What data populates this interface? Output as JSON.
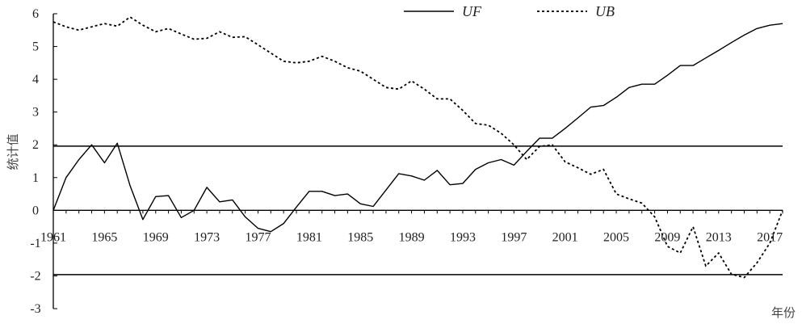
{
  "chart_data": {
    "type": "line",
    "title": "",
    "xlabel": "年份",
    "ylabel": "统计值",
    "xlim": [
      1961,
      2018
    ],
    "ylim": [
      -3,
      6
    ],
    "yticks": [
      -3,
      -2,
      -1,
      0,
      1,
      2,
      3,
      4,
      5,
      6
    ],
    "xticks": [
      1961,
      1965,
      1969,
      1973,
      1977,
      1981,
      1985,
      1989,
      1993,
      1997,
      2001,
      2005,
      2009,
      2013,
      2017
    ],
    "reference_lines": [
      1.96,
      -1.96
    ],
    "legend_position": "top",
    "grid": false,
    "x": [
      1961,
      1962,
      1963,
      1964,
      1965,
      1966,
      1967,
      1968,
      1969,
      1970,
      1971,
      1972,
      1973,
      1974,
      1975,
      1976,
      1977,
      1978,
      1979,
      1980,
      1981,
      1982,
      1983,
      1984,
      1985,
      1986,
      1987,
      1988,
      1989,
      1990,
      1991,
      1992,
      1993,
      1994,
      1995,
      1996,
      1997,
      1998,
      1999,
      2000,
      2001,
      2002,
      2003,
      2004,
      2005,
      2006,
      2007,
      2008,
      2009,
      2010,
      2011,
      2012,
      2013,
      2014,
      2015,
      2016,
      2017,
      2018
    ],
    "series": [
      {
        "name": "UF",
        "style": "solid",
        "values": [
          0,
          1.0,
          1.55,
          2.0,
          1.45,
          2.05,
          0.75,
          -0.28,
          0.42,
          0.45,
          -0.22,
          0.0,
          0.7,
          0.26,
          0.32,
          -0.2,
          -0.55,
          -0.65,
          -0.4,
          0.1,
          0.58,
          0.58,
          0.45,
          0.5,
          0.2,
          0.12,
          0.62,
          1.12,
          1.05,
          0.92,
          1.22,
          0.78,
          0.82,
          1.25,
          1.45,
          1.55,
          1.38,
          1.8,
          2.2,
          2.2,
          2.5,
          2.82,
          3.15,
          3.2,
          3.45,
          3.75,
          3.85,
          3.85,
          4.12,
          4.42,
          4.42,
          4.65,
          4.88,
          5.12,
          5.35,
          5.55,
          5.65,
          5.7
        ]
      },
      {
        "name": "UB",
        "style": "dotted",
        "values": [
          5.75,
          5.6,
          5.5,
          5.6,
          5.7,
          5.62,
          5.9,
          5.65,
          5.45,
          5.55,
          5.38,
          5.22,
          5.25,
          5.45,
          5.28,
          5.3,
          5.05,
          4.8,
          4.55,
          4.5,
          4.55,
          4.7,
          4.55,
          4.35,
          4.25,
          4.0,
          3.75,
          3.7,
          3.95,
          3.7,
          3.4,
          3.4,
          3.05,
          2.65,
          2.6,
          2.35,
          2.0,
          1.55,
          1.95,
          2.0,
          1.48,
          1.3,
          1.1,
          1.25,
          0.5,
          0.35,
          0.22,
          -0.2,
          -1.1,
          -1.3,
          -0.5,
          -1.7,
          -1.3,
          -1.95,
          -2.05,
          -1.6,
          -1.0,
          0
        ]
      }
    ]
  }
}
